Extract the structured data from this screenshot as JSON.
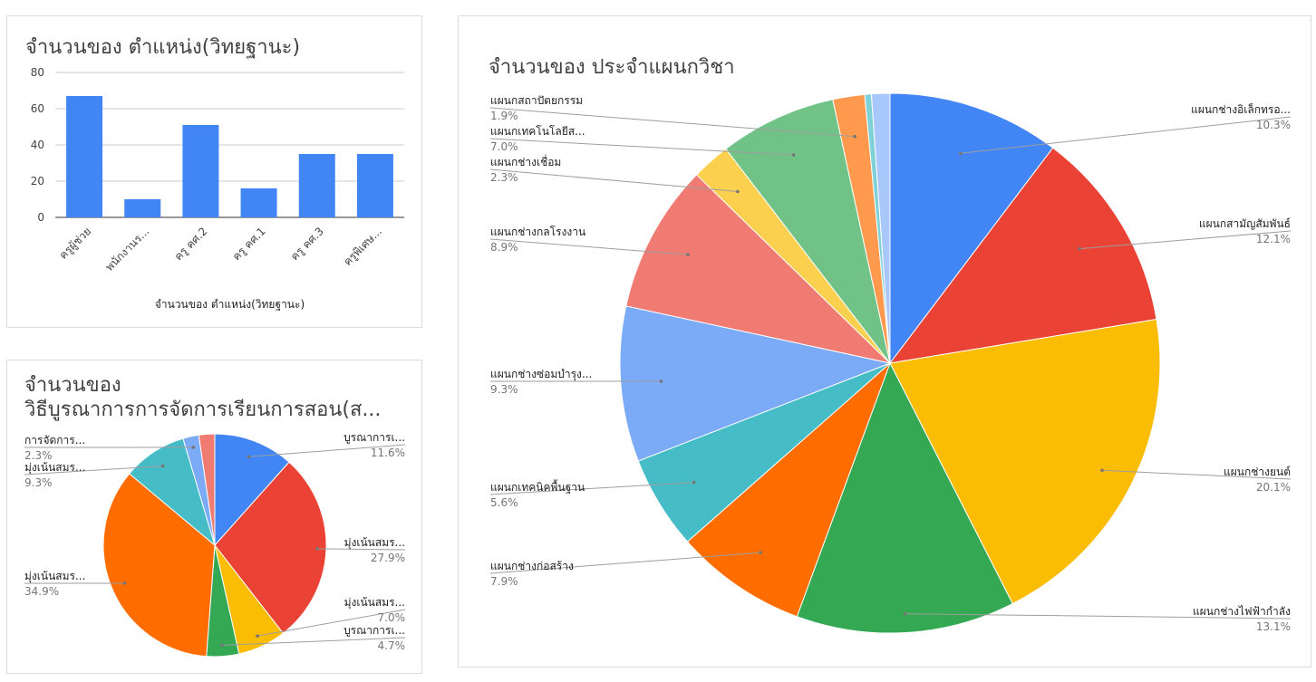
{
  "chart_data": [
    {
      "type": "bar",
      "title": "จำนวนของ ตำแหน่ง(วิทยฐานะ)",
      "xlabel": "จำนวนของ ตำแหน่ง(วิทยฐานะ)",
      "ylabel": "",
      "categories": [
        "ครูผู้ช่วย",
        "พนักงานร...",
        "ครู คศ.2",
        "ครู คศ.1",
        "ครู คศ.3",
        "ครูพิเศษ..."
      ],
      "values": [
        67,
        10,
        51,
        16,
        35,
        35
      ],
      "ylim": [
        0,
        80
      ],
      "yticks": [
        "0",
        "20",
        "40",
        "60",
        "80"
      ],
      "color": "#4285f4",
      "grid": true
    },
    {
      "type": "pie",
      "title": "จำนวนของ ประจำแผนกวิชา",
      "slices": [
        {
          "label": "แผนกช่างอิเล็กทรอ...",
          "pct_label": "10.3%",
          "value": 10.3,
          "color": "#4285f4"
        },
        {
          "label": "แผนกสามัญสัมพันธ์",
          "pct_label": "12.1%",
          "value": 12.1,
          "color": "#ea4335"
        },
        {
          "label": "แผนกช่างยนต์",
          "pct_label": "20.1%",
          "value": 20.1,
          "color": "#fbbc04"
        },
        {
          "label": "แผนกช่างไฟฟ้ากำลัง",
          "pct_label": "13.1%",
          "value": 13.1,
          "color": "#34a853"
        },
        {
          "label": "แผนกช่างก่อสร้าง",
          "pct_label": "7.9%",
          "value": 7.9,
          "color": "#ff6d01"
        },
        {
          "label": "แผนกเทคนิคพื้นฐาน",
          "pct_label": "5.6%",
          "value": 5.6,
          "color": "#46bdc6"
        },
        {
          "label": "แผนกช่างซ่อมบำรุง...",
          "pct_label": "9.3%",
          "value": 9.3,
          "color": "#7baaf7"
        },
        {
          "label": "แผนกช่างกลโรงงาน",
          "pct_label": "8.9%",
          "value": 8.9,
          "color": "#f07b72"
        },
        {
          "label": "แผนกช่างเชื่อม",
          "pct_label": "2.3%",
          "value": 2.3,
          "color": "#fcd04f"
        },
        {
          "label": "แผนกเทคโนโลยีส...",
          "pct_label": "7.0%",
          "value": 7.0,
          "color": "#71c287"
        },
        {
          "label": "แผนกสถาปัตยกรรม",
          "pct_label": "1.9%",
          "value": 1.9,
          "color": "#ff994d"
        },
        {
          "label": "",
          "pct_label": "",
          "value": 0.4,
          "color": "#7ed1d7"
        },
        {
          "label": "",
          "pct_label": "",
          "value": 1.1,
          "color": "#a8c7fa"
        }
      ]
    },
    {
      "type": "pie",
      "title": "จำนวนของ วิธีบูรณาการการจัดการเรียนการสอน(ส...",
      "title_lines": [
        "จำนวนของ",
        "วิธีบูรณาการการจัดการเรียนการสอน(ส..."
      ],
      "slices": [
        {
          "label": "บูรณาการเ...",
          "pct_label": "11.6%",
          "value": 11.6,
          "color": "#4285f4"
        },
        {
          "label": "มุ่งเน้นสมร...",
          "pct_label": "27.9%",
          "value": 27.9,
          "color": "#ea4335"
        },
        {
          "label": "มุ่งเน้นสมร...",
          "pct_label": "7.0%",
          "value": 7.0,
          "color": "#fbbc04"
        },
        {
          "label": "บูรณาการเ...",
          "pct_label": "4.7%",
          "value": 4.7,
          "color": "#34a853"
        },
        {
          "label": "มุ่งเน้นสมร...",
          "pct_label": "34.9%",
          "value": 34.9,
          "color": "#ff6d01"
        },
        {
          "label": "มุ่งเน้นสมร...",
          "pct_label": "9.3%",
          "value": 9.3,
          "color": "#46bdc6"
        },
        {
          "label": "การจัดการ...",
          "pct_label": "2.3%",
          "value": 2.3,
          "color": "#7baaf7"
        },
        {
          "label": "",
          "pct_label": "",
          "value": 2.3,
          "color": "#f07b72"
        }
      ]
    }
  ]
}
